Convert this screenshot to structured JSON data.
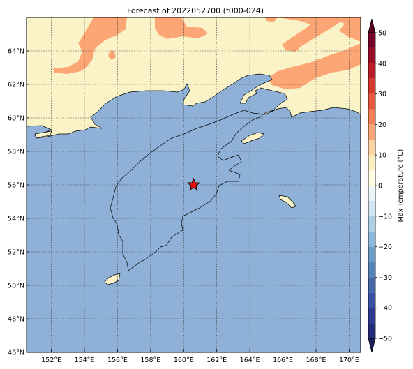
{
  "title": "Forecast of 2022052700 (f000-024)",
  "map": {
    "lon_range": [
      150.5,
      170.7
    ],
    "lat_range": [
      46,
      66
    ],
    "lon_ticks": [
      "152°E",
      "154°E",
      "156°E",
      "158°E",
      "160°E",
      "162°E",
      "164°E",
      "166°E",
      "168°E",
      "170°E"
    ],
    "lon_tick_values": [
      152,
      154,
      156,
      158,
      160,
      162,
      164,
      166,
      168,
      170
    ],
    "lat_ticks": [
      "46°N",
      "48°N",
      "50°N",
      "52°N",
      "54°N",
      "56°N",
      "58°N",
      "60°N",
      "62°N",
      "64°N"
    ],
    "lat_tick_values": [
      46,
      48,
      50,
      52,
      54,
      56,
      58,
      60,
      62,
      64
    ],
    "gridlines": true,
    "marker": {
      "symbol": "star",
      "lon": 160.6,
      "lat": 56.0,
      "color": "#e8100c"
    },
    "colors": {
      "ocean": "#8fb1d8",
      "land_0_10": "#fbf3c8",
      "land_10_20": "#fca676"
    }
  },
  "colorbar": {
    "label": "Max Temperature (°C)",
    "ticks": [
      "−50",
      "−40",
      "−30",
      "−20",
      "−10",
      "0",
      "10",
      "20",
      "30",
      "40",
      "50"
    ],
    "tick_values": [
      -50,
      -40,
      -30,
      -20,
      -10,
      0,
      10,
      20,
      30,
      40,
      50
    ],
    "bins": [
      {
        "from": -50,
        "to": -45,
        "color": "#232c7a"
      },
      {
        "from": -45,
        "to": -40,
        "color": "#2c3a92"
      },
      {
        "from": -40,
        "to": -35,
        "color": "#3750a0"
      },
      {
        "from": -35,
        "to": -30,
        "color": "#4468a8"
      },
      {
        "from": -30,
        "to": -25,
        "color": "#5584b8"
      },
      {
        "from": -25,
        "to": -20,
        "color": "#6b9cc6"
      },
      {
        "from": -20,
        "to": -15,
        "color": "#8bb7d8"
      },
      {
        "from": -15,
        "to": -10,
        "color": "#aed0e3"
      },
      {
        "from": -10,
        "to": -5,
        "color": "#cfe5ef"
      },
      {
        "from": -5,
        "to": 0,
        "color": "#eaf6f6"
      },
      {
        "from": 0,
        "to": 5,
        "color": "#fdfbe0"
      },
      {
        "from": 5,
        "to": 10,
        "color": "#fbeec0"
      },
      {
        "from": 10,
        "to": 15,
        "color": "#fcd4a0"
      },
      {
        "from": 15,
        "to": 20,
        "color": "#fca676"
      },
      {
        "from": 20,
        "to": 25,
        "color": "#f58158"
      },
      {
        "from": 25,
        "to": 30,
        "color": "#e65a3e"
      },
      {
        "from": 30,
        "to": 35,
        "color": "#d7392c"
      },
      {
        "from": 35,
        "to": 40,
        "color": "#bb1d26"
      },
      {
        "from": 40,
        "to": 45,
        "color": "#9a0d26"
      },
      {
        "from": 45,
        "to": 50,
        "color": "#75002a"
      }
    ],
    "extend_low_color": "#1c1d5c",
    "extend_high_color": "#5c0021"
  }
}
